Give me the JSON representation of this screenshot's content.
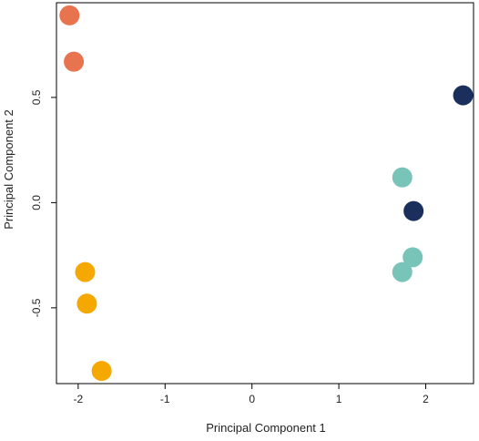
{
  "chart_data": {
    "type": "scatter",
    "title": "",
    "xlabel": "Principal Component 1",
    "ylabel": "Principal Component 2",
    "xlim": [
      -2.25,
      2.55
    ],
    "ylim": [
      -0.86,
      0.95
    ],
    "xticks": [
      -2,
      -1,
      0,
      1,
      2
    ],
    "xtick_labels": [
      "-2",
      "-1",
      "0",
      "1",
      "2"
    ],
    "yticks": [
      -0.5,
      0.0,
      0.5
    ],
    "ytick_labels": [
      "-0.5",
      "0.0",
      "0.5"
    ],
    "grid": false,
    "legend": "none",
    "series": [
      {
        "color": "#E8734F",
        "points": [
          {
            "x": -2.1,
            "y": 0.89
          },
          {
            "x": -2.05,
            "y": 0.67
          }
        ]
      },
      {
        "color": "#F5A800",
        "points": [
          {
            "x": -1.92,
            "y": -0.33
          },
          {
            "x": -1.9,
            "y": -0.48
          },
          {
            "x": -1.73,
            "y": -0.8
          }
        ]
      },
      {
        "color": "#78C4B8",
        "points": [
          {
            "x": 1.73,
            "y": 0.12
          },
          {
            "x": 1.85,
            "y": -0.26
          },
          {
            "x": 1.73,
            "y": -0.33
          }
        ]
      },
      {
        "color": "#1B2F5C",
        "points": [
          {
            "x": 2.43,
            "y": 0.51
          },
          {
            "x": 1.86,
            "y": -0.04
          }
        ]
      }
    ]
  }
}
